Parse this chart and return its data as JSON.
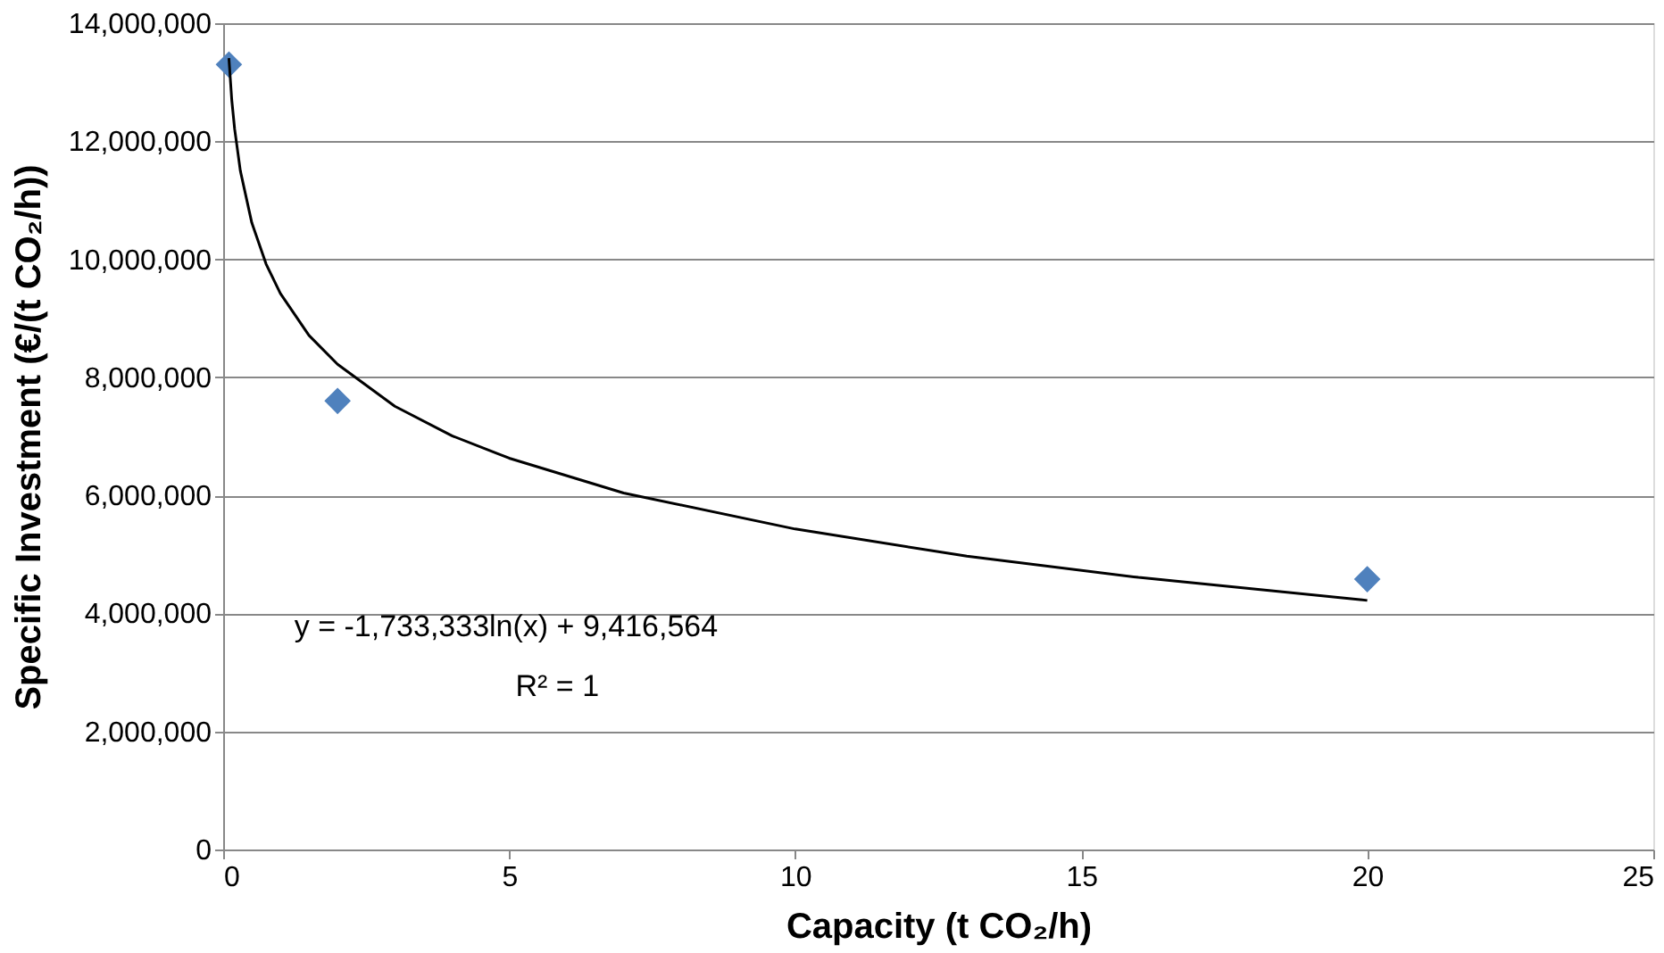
{
  "chart_data": {
    "type": "scatter",
    "xlabel": "Capacity (t CO₂/h)",
    "ylabel": "Specific Investment (€/(t CO₂/h))",
    "xlim": [
      0,
      25
    ],
    "xticks": [
      0,
      5,
      10,
      15,
      20,
      25
    ],
    "ylim": [
      0,
      14000000
    ],
    "yticks": [
      {
        "value": 0,
        "label": "0"
      },
      {
        "value": 2000000,
        "label": "2,000,000"
      },
      {
        "value": 4000000,
        "label": "4,000,000"
      },
      {
        "value": 6000000,
        "label": "6,000,000"
      },
      {
        "value": 8000000,
        "label": "8,000,000"
      },
      {
        "value": 10000000,
        "label": "10,000,000"
      },
      {
        "value": 12000000,
        "label": "12,000,000"
      },
      {
        "value": 14000000,
        "label": "14,000,000"
      }
    ],
    "grid": "y",
    "marker": "diamond",
    "series": [
      {
        "color": "#4f81bd",
        "x": [
          0.1,
          2,
          20
        ],
        "values": [
          13300000,
          7600000,
          4580000
        ]
      },
      {
        "type": "line",
        "color": "#000000",
        "line_style": "solid",
        "marker": "none",
        "x": [
          0.1,
          0.15,
          0.2,
          0.3,
          0.5,
          0.75,
          1,
          1.5,
          2,
          3,
          4,
          5,
          7,
          10,
          13,
          16,
          20
        ],
        "values": [
          13410000,
          12700000,
          12210000,
          11500000,
          10620000,
          9920000,
          9420000,
          8710000,
          8220000,
          7510000,
          7010000,
          6630000,
          6040000,
          5430000,
          4970000,
          4610000,
          4220000
        ]
      }
    ],
    "annotations": [
      "y = -1,733,333ln(x) + 9,416,564",
      "R² = 1"
    ]
  }
}
